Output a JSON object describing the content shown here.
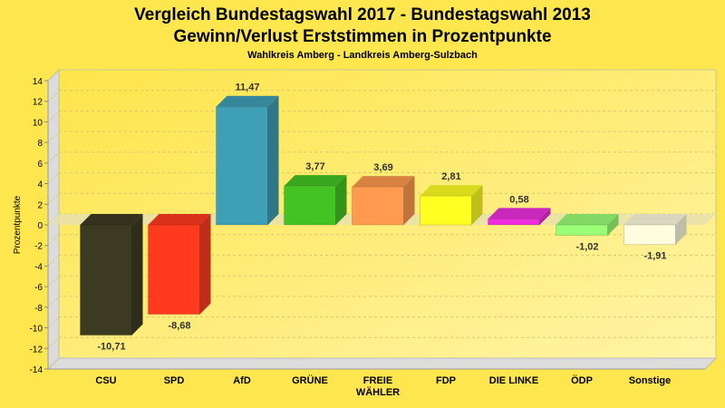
{
  "chart_data": {
    "type": "bar",
    "title": "Vergleich Bundestagswahl 2017 - Bundestagswahl 2013",
    "subtitle": "Gewinn/Verlust Erststimmen in Prozentpunkte",
    "subsubtitle": "Wahlkreis Amberg - Landkreis Amberg-Sulzbach",
    "xlabel": "",
    "ylabel": "Prozentpunkte",
    "ylim": [
      -14,
      14
    ],
    "yticks": [
      14,
      12,
      10,
      8,
      6,
      4,
      2,
      0,
      -2,
      -4,
      -6,
      -8,
      -10,
      -12,
      -14
    ],
    "grid": true,
    "categories": [
      "CSU",
      "SPD",
      "AfD",
      "GRÜNE",
      "FREIE WÄHLER",
      "FDP",
      "DIE LINKE",
      "ÖDP",
      "Sonstige"
    ],
    "values": [
      -10.71,
      -8.68,
      11.47,
      3.77,
      3.69,
      2.81,
      0.58,
      -1.02,
      -1.91
    ],
    "labels": [
      "-10,71",
      "-8,68",
      "11,47",
      "3,77",
      "3,69",
      "2,81",
      "0,58",
      "-1,02",
      "-1,91"
    ],
    "colors": [
      "#3d3a22",
      "#ff3a1e",
      "#3f9fb6",
      "#44c424",
      "#ff9a4e",
      "#ffff22",
      "#ee2edd",
      "#99ff77",
      "#fffde0"
    ]
  }
}
